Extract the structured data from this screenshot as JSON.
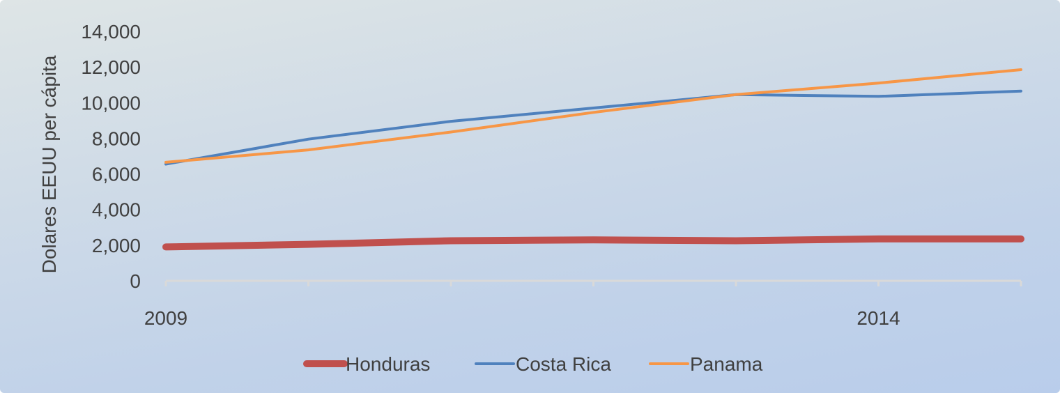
{
  "chart_data": {
    "type": "line",
    "ylabel": "Dolares EEUU per cápita",
    "xlabel": "",
    "title": "",
    "x": [
      2009,
      2010,
      2011,
      2012,
      2013,
      2014,
      2015
    ],
    "x_tick_labels": [
      "2009",
      "",
      "",
      "",
      "",
      "2014",
      ""
    ],
    "ylim": [
      0,
      14000
    ],
    "y_ticks": [
      0,
      2000,
      4000,
      6000,
      8000,
      10000,
      12000,
      14000
    ],
    "y_tick_labels": [
      "0",
      "2,000",
      "4,000",
      "6,000",
      "8,000",
      "10,000",
      "12,000",
      "14,000"
    ],
    "grid": false,
    "legend_position": "bottom",
    "series": [
      {
        "name": "Honduras",
        "values": [
          1900,
          2050,
          2250,
          2300,
          2250,
          2350,
          2350
        ],
        "color": "#c0504d",
        "width": 10
      },
      {
        "name": "Costa Rica",
        "values": [
          6550,
          7950,
          8950,
          9700,
          10450,
          10350,
          10650
        ],
        "color": "#4f81bd",
        "width": 4
      },
      {
        "name": "Panama",
        "values": [
          6650,
          7350,
          8350,
          9450,
          10450,
          11100,
          11850
        ],
        "color": "#f79646",
        "width": 4
      }
    ]
  }
}
